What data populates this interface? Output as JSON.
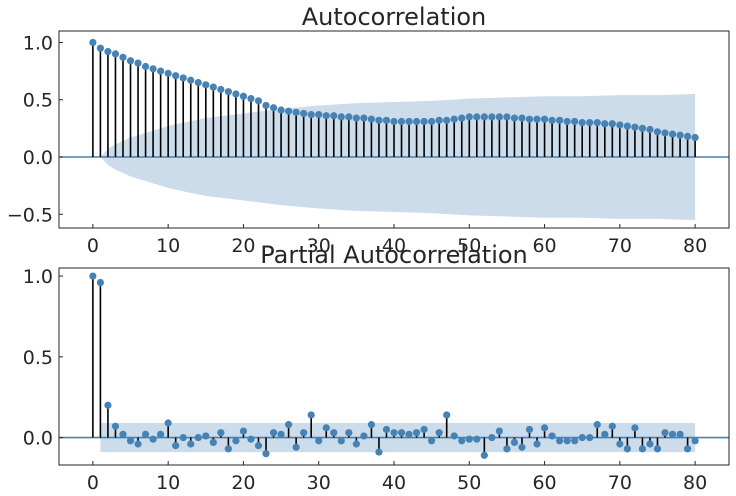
{
  "colors": {
    "marker": "#4682b4",
    "band": "#cddcea",
    "zero_line": "#4682b4"
  },
  "chart_data": [
    {
      "type": "scatter",
      "title": "Autocorrelation",
      "xlim": [
        -4.5,
        84.5
      ],
      "ylim": [
        -0.62,
        1.1
      ],
      "xticks": [
        0,
        10,
        20,
        30,
        40,
        50,
        60,
        70,
        80
      ],
      "xtick_labels": [
        "0",
        "10",
        "20",
        "30",
        "40",
        "50",
        "60",
        "70",
        "80"
      ],
      "yticks": [
        -0.5,
        0.0,
        0.5,
        1.0
      ],
      "ytick_labels": [
        "−0.5",
        "0.0",
        "0.5",
        "1.0"
      ],
      "grid": false,
      "lags": [
        0,
        1,
        2,
        3,
        4,
        5,
        6,
        7,
        8,
        9,
        10,
        11,
        12,
        13,
        14,
        15,
        16,
        17,
        18,
        19,
        20,
        21,
        22,
        23,
        24,
        25,
        26,
        27,
        28,
        29,
        30,
        31,
        32,
        33,
        34,
        35,
        36,
        37,
        38,
        39,
        40,
        41,
        42,
        43,
        44,
        45,
        46,
        47,
        48,
        49,
        50,
        51,
        52,
        53,
        54,
        55,
        56,
        57,
        58,
        59,
        60,
        61,
        62,
        63,
        64,
        65,
        66,
        67,
        68,
        69,
        70,
        71,
        72,
        73,
        74,
        75,
        76,
        77,
        78,
        79,
        80
      ],
      "values": [
        1.0,
        0.95,
        0.92,
        0.9,
        0.87,
        0.84,
        0.82,
        0.79,
        0.77,
        0.75,
        0.73,
        0.71,
        0.69,
        0.67,
        0.65,
        0.63,
        0.61,
        0.59,
        0.57,
        0.55,
        0.53,
        0.51,
        0.49,
        0.45,
        0.43,
        0.41,
        0.4,
        0.39,
        0.38,
        0.37,
        0.37,
        0.36,
        0.36,
        0.35,
        0.35,
        0.34,
        0.34,
        0.33,
        0.32,
        0.32,
        0.31,
        0.31,
        0.31,
        0.31,
        0.31,
        0.31,
        0.32,
        0.32,
        0.33,
        0.34,
        0.35,
        0.35,
        0.35,
        0.35,
        0.35,
        0.35,
        0.34,
        0.34,
        0.33,
        0.33,
        0.33,
        0.32,
        0.32,
        0.31,
        0.31,
        0.3,
        0.3,
        0.3,
        0.29,
        0.29,
        0.28,
        0.27,
        0.26,
        0.25,
        0.24,
        0.22,
        0.21,
        0.2,
        0.19,
        0.18,
        0.17
      ],
      "confidence_band": {
        "lags": [
          1,
          2,
          3,
          4,
          5,
          6,
          8,
          10,
          12,
          15,
          20,
          25,
          30,
          35,
          40,
          45,
          50,
          55,
          60,
          65,
          70,
          75,
          80
        ],
        "upper": [
          0.0,
          0.07,
          0.11,
          0.14,
          0.17,
          0.19,
          0.23,
          0.27,
          0.3,
          0.34,
          0.38,
          0.42,
          0.45,
          0.47,
          0.48,
          0.49,
          0.51,
          0.52,
          0.53,
          0.53,
          0.54,
          0.54,
          0.55
        ]
      }
    },
    {
      "type": "scatter",
      "title": "Partial Autocorrelation",
      "xlim": [
        -4.5,
        84.5
      ],
      "ylim": [
        -0.17,
        1.05
      ],
      "xticks": [
        0,
        10,
        20,
        30,
        40,
        50,
        60,
        70,
        80
      ],
      "xtick_labels": [
        "0",
        "10",
        "20",
        "30",
        "40",
        "50",
        "60",
        "70",
        "80"
      ],
      "yticks": [
        0.0,
        0.5,
        1.0
      ],
      "ytick_labels": [
        "0.0",
        "0.5",
        "1.0"
      ],
      "grid": false,
      "lags": [
        0,
        1,
        2,
        3,
        4,
        5,
        6,
        7,
        8,
        9,
        10,
        11,
        12,
        13,
        14,
        15,
        16,
        17,
        18,
        19,
        20,
        21,
        22,
        23,
        24,
        25,
        26,
        27,
        28,
        29,
        30,
        31,
        32,
        33,
        34,
        35,
        36,
        37,
        38,
        39,
        40,
        41,
        42,
        43,
        44,
        45,
        46,
        47,
        48,
        49,
        50,
        51,
        52,
        53,
        54,
        55,
        56,
        57,
        58,
        59,
        60,
        61,
        62,
        63,
        64,
        65,
        66,
        67,
        68,
        69,
        70,
        71,
        72,
        73,
        74,
        75,
        76,
        77,
        78,
        79,
        80
      ],
      "values": [
        1.0,
        0.96,
        0.2,
        0.07,
        0.02,
        -0.02,
        -0.04,
        0.02,
        -0.01,
        0.02,
        0.09,
        -0.05,
        0.0,
        -0.04,
        0.0,
        0.01,
        -0.03,
        0.03,
        -0.07,
        -0.02,
        0.04,
        -0.01,
        -0.05,
        -0.1,
        0.03,
        0.02,
        0.08,
        -0.06,
        0.03,
        0.14,
        -0.02,
        0.06,
        0.03,
        -0.02,
        0.03,
        -0.04,
        0.01,
        0.08,
        -0.09,
        0.05,
        0.03,
        0.03,
        0.02,
        0.03,
        0.05,
        -0.02,
        0.03,
        0.14,
        0.01,
        -0.02,
        -0.01,
        -0.01,
        -0.11,
        0.0,
        0.04,
        -0.07,
        -0.03,
        -0.06,
        0.05,
        -0.04,
        0.06,
        0.01,
        -0.02,
        -0.02,
        -0.02,
        0.0,
        0.0,
        0.08,
        0.02,
        0.07,
        -0.04,
        -0.07,
        0.06,
        -0.07,
        -0.04,
        -0.07,
        0.03,
        0.02,
        0.02,
        -0.07,
        -0.02
      ],
      "confidence_band": {
        "lags": [
          1,
          80
        ],
        "upper": [
          0.09,
          0.09
        ]
      }
    }
  ]
}
